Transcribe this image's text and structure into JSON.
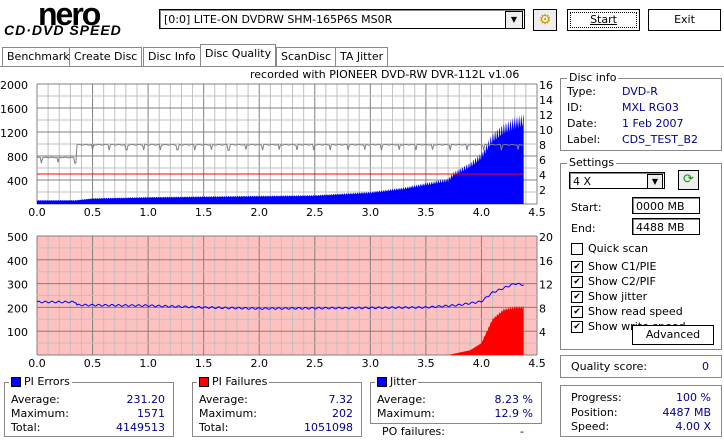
{
  "logo": {
    "line1": "nero",
    "line2": "CD·DVD SPEED"
  },
  "drive": "[0:0]  LITE-ON DVDRW SHM-165P6S MS0R",
  "buttons": {
    "start": "Start",
    "exit": "Exit",
    "advanced": "Advanced"
  },
  "tabs": [
    "Benchmark",
    "Create Disc",
    "Disc Info",
    "Disc Quality",
    "ScanDisc",
    "TA Jitter"
  ],
  "recorded_with": "recorded with PIONEER DVD-RW  DVR-112L v1.06",
  "disc_info": {
    "title": "Disc info",
    "rows": [
      {
        "k": "Type:",
        "v": "DVD-R"
      },
      {
        "k": "ID:",
        "v": "MXL RG03"
      },
      {
        "k": "Date:",
        "v": "1 Feb 2007"
      },
      {
        "k": "Label:",
        "v": "CDS_TEST_B2"
      }
    ]
  },
  "settings": {
    "title": "Settings",
    "speed": "4 X",
    "start_label": "Start:",
    "start": "0000 MB",
    "end_label": "End:",
    "end": "4488 MB",
    "checks": [
      {
        "label": "Quick scan",
        "checked": false
      },
      {
        "label": "Show C1/PIE",
        "checked": true
      },
      {
        "label": "Show C2/PIF",
        "checked": true
      },
      {
        "label": "Show jitter",
        "checked": true
      },
      {
        "label": "Show read speed",
        "checked": true
      },
      {
        "label": "Show write speed",
        "checked": true
      }
    ]
  },
  "quality": {
    "label": "Quality score:",
    "value": "0"
  },
  "pi_errors": {
    "title": "PI Errors",
    "color": "#0000ff",
    "average_label": "Average:",
    "average": "231.20",
    "maximum_label": "Maximum:",
    "maximum": "1571",
    "total_label": "Total:",
    "total": "4149513"
  },
  "pi_failures": {
    "title": "PI Failures",
    "color": "#ff0000",
    "average_label": "Average:",
    "average": "7.32",
    "maximum_label": "Maximum:",
    "maximum": "202",
    "total_label": "Total:",
    "total": "1051098"
  },
  "jitter": {
    "title": "Jitter",
    "color": "#0000ff",
    "average_label": "Average:",
    "average": "8.23 %",
    "maximum_label": "Maximum:",
    "maximum": "12.9 %",
    "po_label": "PO failures:",
    "po": "-"
  },
  "progress": {
    "progress_label": "Progress:",
    "progress": "100 %",
    "position_label": "Position:",
    "position": "4487 MB",
    "speed_label": "Speed:",
    "speed": "4.00 X"
  },
  "chart_data": [
    {
      "type": "area",
      "name": "PI Errors",
      "xlim": [
        0,
        4.5
      ],
      "ylim": [
        0,
        2000
      ],
      "y2lim": [
        0,
        16
      ],
      "xticks": [
        "0.0",
        "0.5",
        "1.0",
        "1.5",
        "2.0",
        "2.5",
        "3.0",
        "3.5",
        "4.0",
        "4.5"
      ],
      "yticks": [
        "2000",
        "1600",
        "1200",
        "800",
        "400"
      ],
      "y2ticks": [
        "16",
        "14",
        "12",
        "10",
        "8",
        "6",
        "4",
        "2"
      ],
      "pie": {
        "x": [
          0,
          0.35,
          0.5,
          1.0,
          1.5,
          2.0,
          2.5,
          3.0,
          3.3,
          3.5,
          3.7,
          3.75,
          3.9,
          4.0,
          4.1,
          4.2,
          4.3,
          4.38
        ],
        "y": [
          60,
          60,
          90,
          110,
          120,
          130,
          140,
          190,
          260,
          330,
          400,
          500,
          650,
          800,
          1100,
          1250,
          1350,
          1400
        ]
      },
      "read_speed": {
        "x": [
          0,
          0.35,
          0.36,
          4.38
        ],
        "y": [
          6.2,
          6.2,
          7.9,
          7.9
        ]
      },
      "write_speed": {
        "x": [
          0,
          4.38
        ],
        "y": [
          4,
          4
        ]
      }
    },
    {
      "type": "area",
      "name": "PI Failures / Jitter",
      "xlim": [
        0,
        4.5
      ],
      "ylim": [
        0,
        500
      ],
      "y2lim": [
        0,
        20
      ],
      "xticks": [
        "0.0",
        "0.5",
        "1.0",
        "1.5",
        "2.0",
        "2.5",
        "3.0",
        "3.5",
        "4.0",
        "4.5"
      ],
      "yticks": [
        "500",
        "400",
        "300",
        "200",
        "100"
      ],
      "y2ticks": [
        "20",
        "16",
        "12",
        "8",
        "4"
      ],
      "pif": {
        "x": [
          0,
          3.7,
          3.8,
          3.9,
          4.0,
          4.05,
          4.1,
          4.2,
          4.3,
          4.38
        ],
        "y": [
          0,
          0,
          10,
          20,
          50,
          100,
          150,
          190,
          200,
          200
        ]
      },
      "jitter": {
        "x": [
          0,
          0.35,
          0.36,
          1.0,
          1.5,
          2.0,
          3.5,
          3.8,
          4.0,
          4.1,
          4.3,
          4.38
        ],
        "y": [
          8.9,
          8.9,
          8.4,
          8.3,
          8.0,
          7.8,
          8.0,
          8.4,
          9.0,
          10.5,
          12,
          11.8
        ]
      }
    }
  ]
}
